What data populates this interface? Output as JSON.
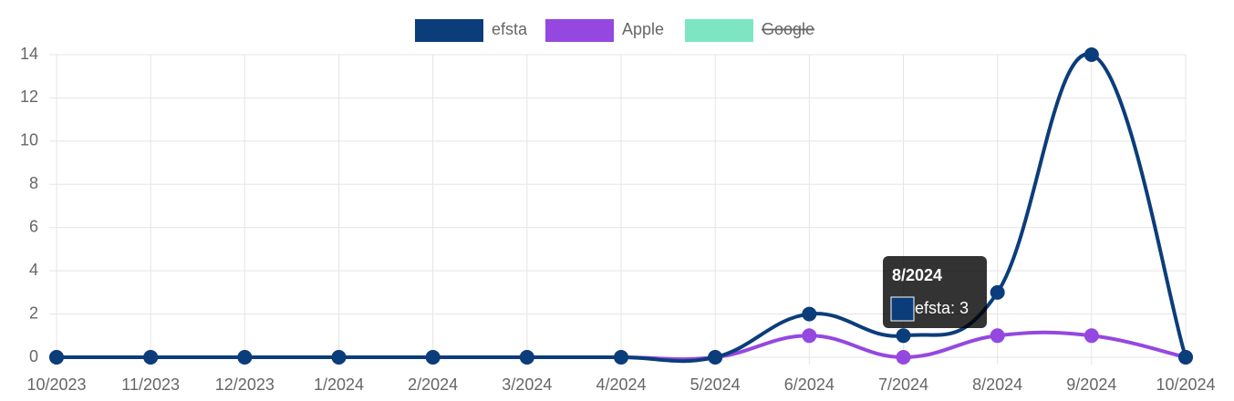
{
  "chart_data": {
    "type": "line",
    "categories": [
      "10/2023",
      "11/2023",
      "12/2023",
      "1/2024",
      "2/2024",
      "3/2024",
      "4/2024",
      "5/2024",
      "6/2024",
      "7/2024",
      "8/2024",
      "9/2024",
      "10/2024"
    ],
    "series": [
      {
        "name": "efsta",
        "color": "#0b3d7a",
        "values": [
          0,
          0,
          0,
          0,
          0,
          0,
          0,
          0,
          2,
          1,
          3,
          14,
          0
        ]
      },
      {
        "name": "Apple",
        "color": "#9448e0",
        "values": [
          0,
          0,
          0,
          0,
          0,
          0,
          0,
          0,
          1,
          0,
          1,
          1,
          0
        ]
      },
      {
        "name": "Google",
        "color": "#7de5c2",
        "hidden": true
      }
    ],
    "ylim": [
      0,
      14
    ],
    "yticks": [
      0,
      2,
      4,
      6,
      8,
      10,
      12,
      14
    ],
    "grid": true,
    "legend": "top",
    "tooltip": {
      "title": "8/2024",
      "label": "efsta: 3",
      "series": 0,
      "index": 10
    }
  }
}
